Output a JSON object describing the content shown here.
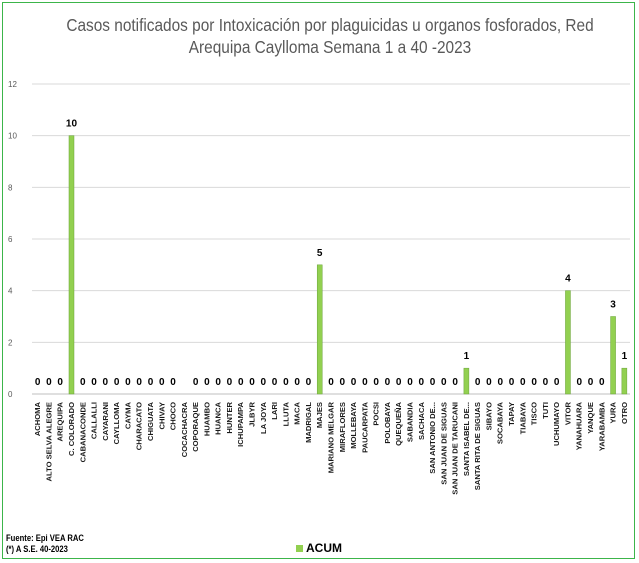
{
  "title": {
    "line1": "Casos notificados por Intoxicación por plaguicidas u organos fosforados, Red",
    "line2": "Arequipa Caylloma  Semana 1 a 40 -2023"
  },
  "source": {
    "line1": "Fuente: Epi VEA RAC",
    "line2": "(*) A S.E. 40-2023"
  },
  "colors": {
    "bar": "#92d050",
    "bar_edge": "#6aa33a",
    "grid": "#d9d9d9",
    "frame": "#3cb54a"
  },
  "chart_data": {
    "type": "bar",
    "title": "Casos notificados por Intoxicación por plaguicidas u organos fosforados, Red Arequipa Caylloma  Semana 1 a 40 -2023",
    "xlabel": "",
    "ylabel": "",
    "ylim": [
      0,
      12
    ],
    "yticks": [
      "0",
      "2",
      "4",
      "6",
      "8",
      "10",
      "12"
    ],
    "grid": true,
    "legend_position": "bottom",
    "categories": [
      "ACHOMA",
      "ALTO SELVA ALEGRE",
      "AREQUIPA",
      "C. COLORADO",
      "CABANACONDE",
      "CALLALLI",
      "CAYARANI",
      "CAYLLOMA",
      "CAYMA",
      "CHARACATO",
      "CHIGUATA",
      "CHIVAY",
      "CHOCO",
      "COCACHACRA",
      "COPORAQUE",
      "HUAMBO",
      "HUANCA",
      "HUNTER",
      "ICHUPAMPA",
      "JLBYR",
      "LA JOYA",
      "LARI",
      "LLUTA",
      "MACA",
      "MADRIGAL",
      "MAJES",
      "MARIANO MELGAR",
      "MIRAFLORES",
      "MOLLEBAYA",
      "PAUCARPATA",
      "POCSI",
      "POLOBAYA",
      "QUEQUEÑA",
      "SABANDIA",
      "SACHACA",
      "SAN ANTONIO DE...",
      "SAN JUAN DE SIGUAS",
      "SAN JUAN DE TARUCANI",
      "SANTA ISABEL DE...",
      "SANTA RITA DE SIGUAS",
      "SIBAYO",
      "SOCABAYA",
      "TAPAY",
      "TIABAYA",
      "TISCO",
      "TUTI",
      "UCHUMAYO",
      "VITOR",
      "YANAHUARA",
      "YANQUE",
      "YARABAMBA",
      "YURA",
      "OTRO"
    ],
    "series": [
      {
        "name": "ACUM",
        "values": [
          0,
          0,
          0,
          10,
          0,
          0,
          0,
          0,
          0,
          0,
          0,
          0,
          0,
          null,
          0,
          0,
          0,
          0,
          0,
          0,
          0,
          0,
          0,
          0,
          0,
          5,
          0,
          0,
          0,
          0,
          0,
          0,
          0,
          0,
          0,
          0,
          0,
          0,
          1,
          0,
          0,
          0,
          0,
          0,
          0,
          0,
          0,
          4,
          0,
          0,
          0,
          3,
          1
        ],
        "data_labels": [
          "0",
          "0",
          "0",
          "10",
          "0",
          "0",
          "0",
          "0",
          "0",
          "0",
          "0",
          "0",
          "0",
          "",
          "0",
          "0",
          "0",
          "0",
          "0",
          "0",
          "0",
          "0",
          "0",
          "0",
          "0",
          "5",
          "0",
          "0",
          "0",
          "0",
          "0",
          "0",
          "0",
          "0",
          "0",
          "0",
          "0",
          "0",
          "1",
          "0",
          "0",
          "0",
          "0",
          "0",
          "0",
          "0",
          "0",
          "4",
          "0",
          "0",
          "0",
          "3",
          "1"
        ]
      }
    ]
  }
}
